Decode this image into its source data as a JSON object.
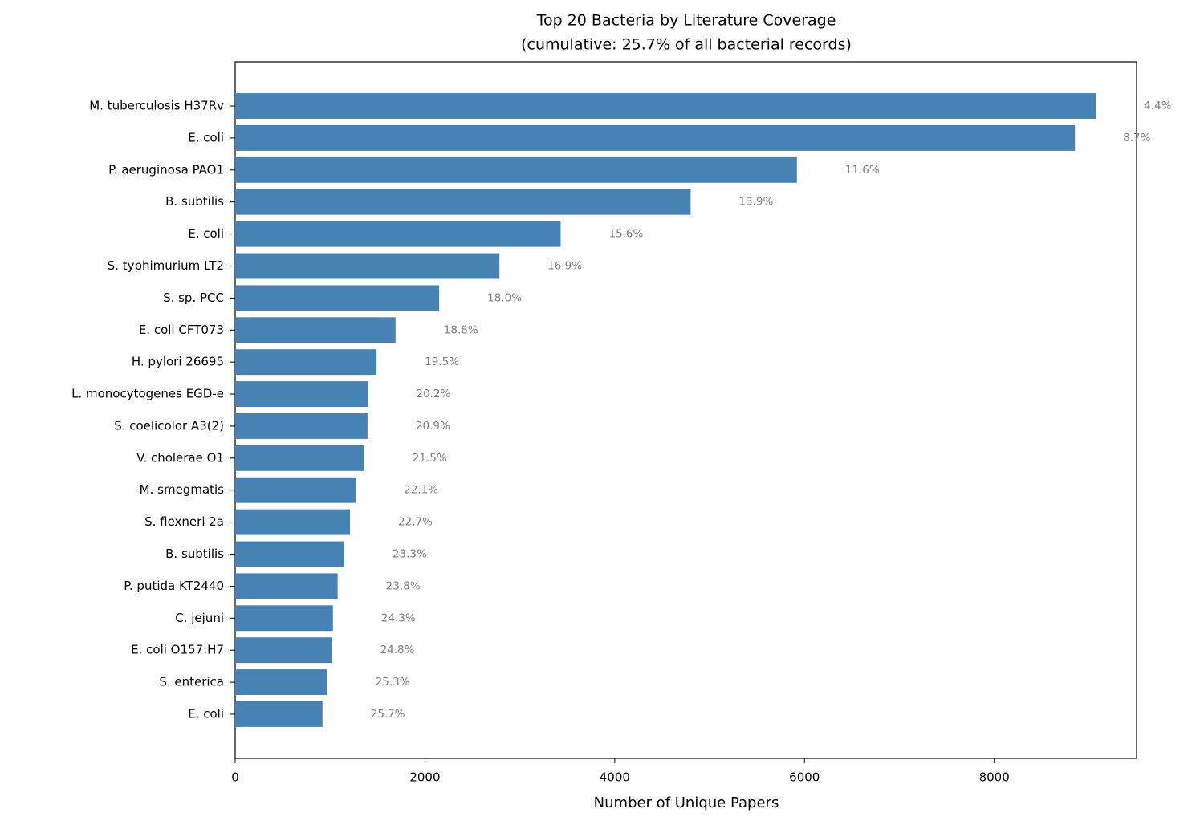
{
  "chart_data": {
    "type": "barh",
    "title": "Top 20 Bacteria by Literature Coverage",
    "subtitle": "(cumulative: 25.7% of all bacterial records)",
    "xlabel": "Number of Unique Papers",
    "categories": [
      "M. tuberculosis H37Rv",
      "E. coli",
      "P. aeruginosa PAO1",
      "B. subtilis",
      "E. coli",
      "S. typhimurium LT2",
      "S. sp. PCC",
      "E. coli CFT073",
      "H. pylori 26695",
      "L. monocytogenes EGD-e",
      "S. coelicolor A3(2)",
      "V. cholerae O1",
      "M. smegmatis",
      "S. flexneri 2a",
      "B. subtilis",
      "P. putida KT2440",
      "C. jejuni",
      "E. coli O157:H7",
      "S. enterica",
      "E. coli"
    ],
    "values": [
      9070,
      8850,
      5920,
      4800,
      3430,
      2785,
      2150,
      1690,
      1490,
      1400,
      1395,
      1360,
      1270,
      1210,
      1150,
      1080,
      1030,
      1020,
      970,
      920
    ],
    "cumulative_labels": [
      "4.4%",
      "8.7%",
      "11.6%",
      "13.9%",
      "15.6%",
      "16.9%",
      "18.0%",
      "18.8%",
      "19.5%",
      "20.2%",
      "20.9%",
      "21.5%",
      "22.1%",
      "22.7%",
      "23.3%",
      "23.8%",
      "24.3%",
      "24.8%",
      "25.3%",
      "25.7%"
    ],
    "color": "#4682b4",
    "xlim": [
      0,
      9500
    ],
    "xticks": [
      0,
      2000,
      4000,
      6000,
      8000
    ],
    "grid": false
  }
}
